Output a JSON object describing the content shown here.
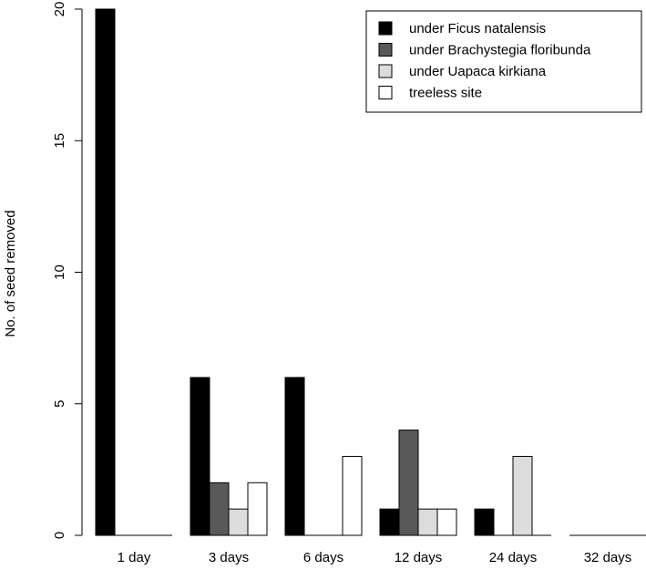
{
  "chart_data": {
    "type": "bar",
    "title": "",
    "xlabel": "",
    "ylabel": "No. of seed removed",
    "ylim": [
      0,
      20
    ],
    "yticks": [
      0,
      5,
      10,
      15,
      20
    ],
    "grid": false,
    "legend_position": "top-right",
    "categories": [
      "1 day",
      "3 days",
      "6 days",
      "12 days",
      "24 days",
      "32 days"
    ],
    "series": [
      {
        "name": "under Ficus natalensis",
        "color": "#000000",
        "values": [
          20,
          6,
          6,
          1,
          1,
          0
        ]
      },
      {
        "name": "under Brachystegia floribunda",
        "color": "#595959",
        "values": [
          0,
          2,
          0,
          4,
          0,
          0
        ]
      },
      {
        "name": "under Uapaca kirkiana",
        "color": "#dcdcdc",
        "values": [
          0,
          1,
          0,
          1,
          3,
          0
        ]
      },
      {
        "name": "treeless site",
        "color": "#ffffff",
        "values": [
          0,
          2,
          3,
          1,
          0,
          0
        ]
      }
    ]
  }
}
